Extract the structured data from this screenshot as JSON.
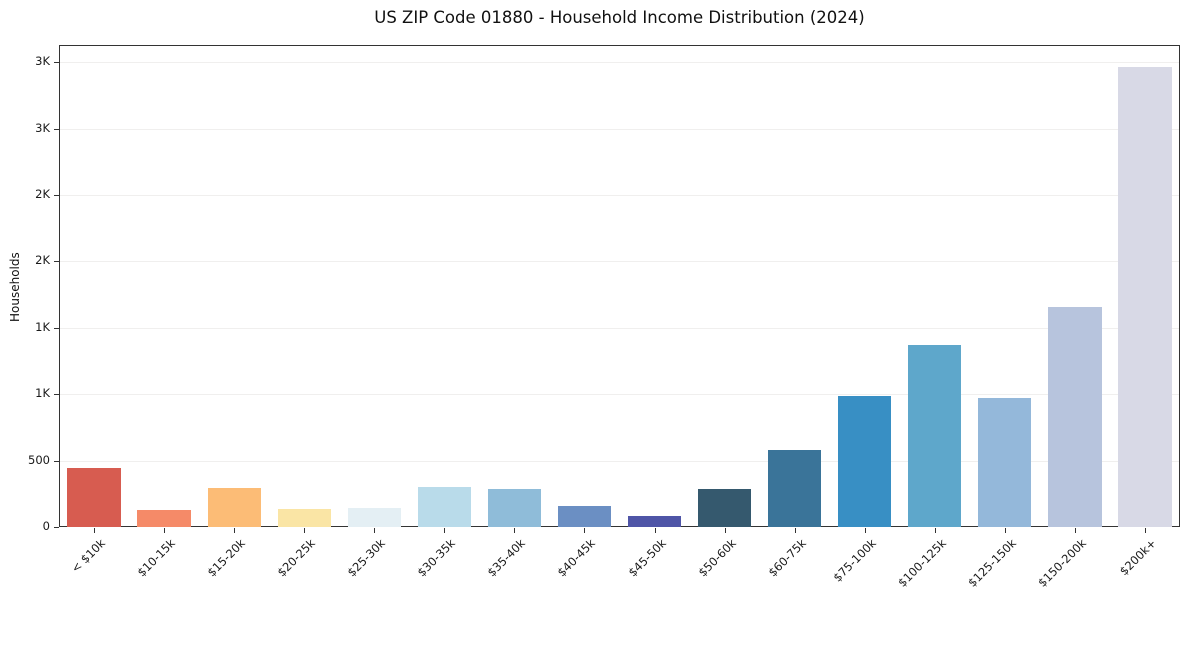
{
  "chart_data": {
    "type": "bar",
    "title": "US ZIP Code 01880 - Household Income Distribution (2024)",
    "xlabel": "",
    "ylabel": "Households",
    "categories": [
      "< $10k",
      "$10-15k",
      "$15-20k",
      "$20-25k",
      "$25-30k",
      "$30-35k",
      "$35-40k",
      "$40-45k",
      "$45-50k",
      "$50-60k",
      "$60-75k",
      "$75-100k",
      "$100-125k",
      "$125-150k",
      "$150-200k",
      "$200k+"
    ],
    "values": [
      445,
      130,
      295,
      135,
      140,
      305,
      285,
      160,
      80,
      285,
      580,
      990,
      1370,
      975,
      1655,
      3465
    ],
    "bar_colors": [
      "#d75c50",
      "#f58a68",
      "#fcbc76",
      "#fae5a5",
      "#e4eff4",
      "#b9dbea",
      "#8fbcd9",
      "#6b8fc3",
      "#4f55a7",
      "#35596e",
      "#3a7499",
      "#388fc4",
      "#5ea7cb",
      "#94b8da",
      "#b7c4dd",
      "#d8d9e6"
    ],
    "ylim": [
      0,
      3630
    ],
    "yticks": [
      {
        "value": 0,
        "label": "0"
      },
      {
        "value": 500,
        "label": "500"
      },
      {
        "value": 1000,
        "label": "1K"
      },
      {
        "value": 1500,
        "label": "1K"
      },
      {
        "value": 2000,
        "label": "2K"
      },
      {
        "value": 2500,
        "label": "2K"
      },
      {
        "value": 3000,
        "label": "3K"
      },
      {
        "value": 3500,
        "label": "3K"
      }
    ],
    "grid": true,
    "legend_position": "none",
    "background_color": "#ffffff",
    "axis_color": "#333333",
    "gridline_color": "#f0efee"
  }
}
